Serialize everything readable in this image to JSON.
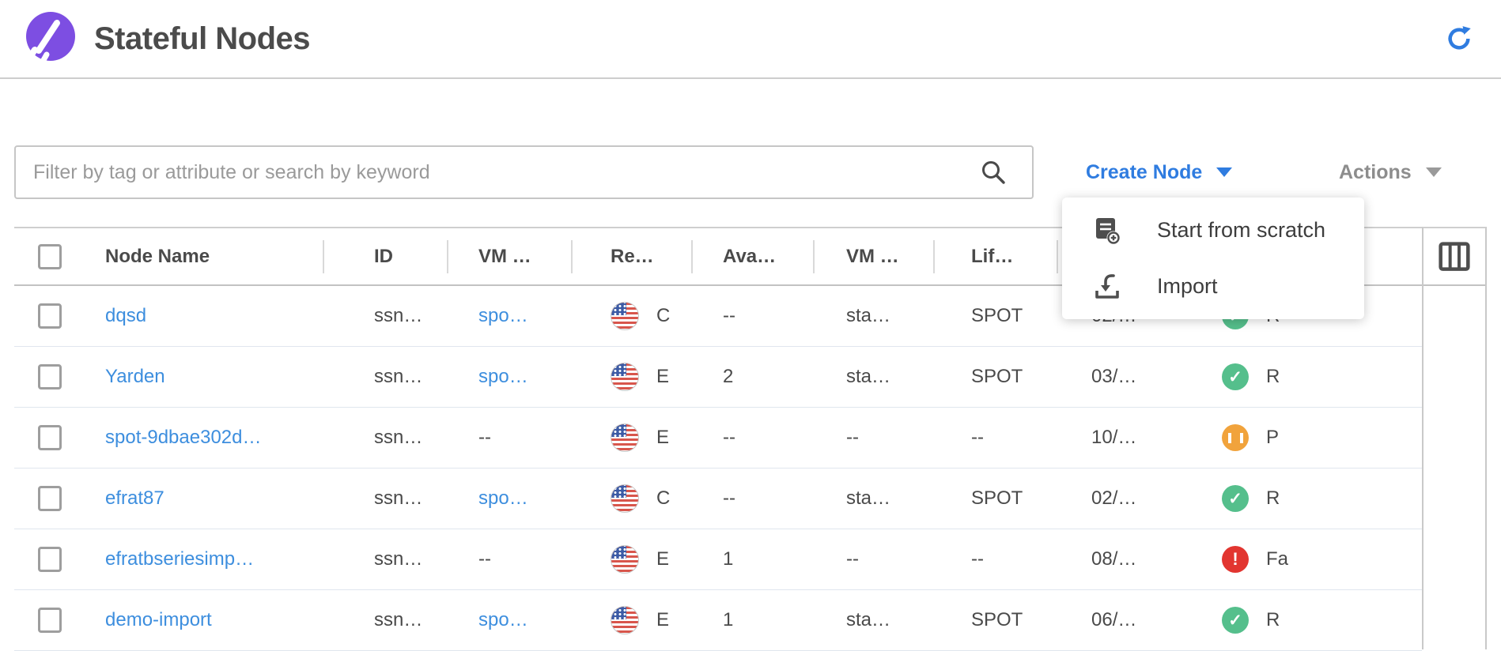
{
  "page": {
    "title": "Stateful Nodes"
  },
  "toolbar": {
    "filter_placeholder": "Filter by tag or attribute or search by keyword",
    "create_node_label": "Create Node",
    "actions_label": "Actions"
  },
  "create_menu": {
    "items": [
      {
        "icon": "note-add-icon",
        "label": "Start from scratch"
      },
      {
        "icon": "import-icon",
        "label": "Import"
      }
    ]
  },
  "table": {
    "headers": {
      "name": "Node Name",
      "id": "ID",
      "vm": "VM …",
      "region": "Re…",
      "az": "Ava…",
      "vm_size": "VM …",
      "lifecycle": "Lif…"
    },
    "rows": [
      {
        "name": "dqsd",
        "id": "ssn…",
        "vm": "spo…",
        "region": "C",
        "az": "--",
        "vm_size": "sta…",
        "lifecycle": "SPOT",
        "created": "02/…",
        "status": "running",
        "status_label": "R"
      },
      {
        "name": "Yarden",
        "id": "ssn…",
        "vm": "spo…",
        "region": "E",
        "az": "2",
        "vm_size": "sta…",
        "lifecycle": "SPOT",
        "created": "03/…",
        "status": "running",
        "status_label": "R"
      },
      {
        "name": "spot-9dbae302d…",
        "id": "ssn…",
        "vm": "--",
        "region": "E",
        "az": "--",
        "vm_size": "--",
        "lifecycle": "--",
        "created": "10/…",
        "status": "paused",
        "status_label": "P"
      },
      {
        "name": "efrat87",
        "id": "ssn…",
        "vm": "spo…",
        "region": "C",
        "az": "--",
        "vm_size": "sta…",
        "lifecycle": "SPOT",
        "created": "02/…",
        "status": "running",
        "status_label": "R"
      },
      {
        "name": "efratbseriesimp…",
        "id": "ssn…",
        "vm": "--",
        "region": "E",
        "az": "1",
        "vm_size": "--",
        "lifecycle": "--",
        "created": "08/…",
        "status": "failed",
        "status_label": "Fa"
      },
      {
        "name": "demo-import",
        "id": "ssn…",
        "vm": "spo…",
        "region": "E",
        "az": "1",
        "vm_size": "sta…",
        "lifecycle": "SPOT",
        "created": "06/…",
        "status": "running",
        "status_label": "R"
      }
    ]
  },
  "colors": {
    "accent_blue": "#2f7ce0",
    "link_blue": "#3d8ede",
    "brand_purple": "#7d4ee2",
    "status_green": "#55bf8c",
    "status_orange": "#f1a33c",
    "status_red": "#e23530"
  }
}
